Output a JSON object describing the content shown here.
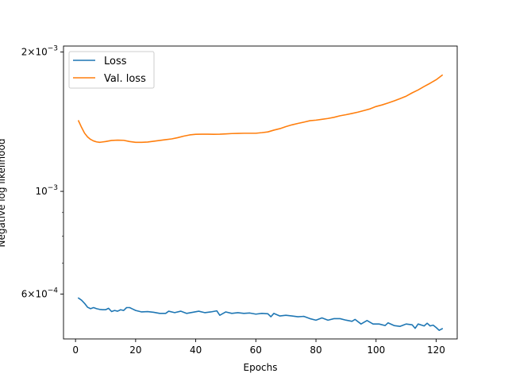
{
  "chart_data": {
    "type": "line",
    "xlabel": "Epochs",
    "ylabel": "Negative log likelihood",
    "xlim": [
      -4,
      127
    ],
    "ylim": [
      0.00048,
      0.00206
    ],
    "yscale": "log",
    "grid": false,
    "legend_position": "top-left",
    "x_ticks": [
      0,
      20,
      40,
      60,
      80,
      100,
      120
    ],
    "x_tick_labels": [
      "0",
      "20",
      "40",
      "60",
      "80",
      "100",
      "120"
    ],
    "y_ticks": [
      {
        "value": 0.002,
        "mantissa": "2",
        "base": "10",
        "exp": "−3"
      },
      {
        "value": 0.001,
        "mantissa": "",
        "base": "10",
        "exp": "−3"
      },
      {
        "value": 0.0006,
        "mantissa": "6",
        "base": "10",
        "exp": "−4"
      }
    ],
    "y_minor_ticks": [
      0.0007,
      0.0008,
      0.0009
    ],
    "series": [
      {
        "name": "Loss",
        "color": "#1f77b4",
        "points": [
          [
            1,
            0.000588
          ],
          [
            2,
            0.000582
          ],
          [
            3,
            0.000573
          ],
          [
            4,
            0.000562
          ],
          [
            5,
            0.000558
          ],
          [
            6,
            0.000561
          ],
          [
            7,
            0.000558
          ],
          [
            8,
            0.000556
          ],
          [
            9,
            0.000555
          ],
          [
            10,
            0.000555
          ],
          [
            11,
            0.000559
          ],
          [
            12,
            0.00055
          ],
          [
            13,
            0.000553
          ],
          [
            14,
            0.000551
          ],
          [
            15,
            0.000555
          ],
          [
            16,
            0.000553
          ],
          [
            17,
            0.000561
          ],
          [
            18,
            0.000561
          ],
          [
            19,
            0.000557
          ],
          [
            20,
            0.000553
          ],
          [
            22,
            0.000549
          ],
          [
            24,
            0.00055
          ],
          [
            26,
            0.000548
          ],
          [
            28,
            0.000545
          ],
          [
            30,
            0.000545
          ],
          [
            31,
            0.000551
          ],
          [
            33,
            0.000547
          ],
          [
            35,
            0.000551
          ],
          [
            37,
            0.000545
          ],
          [
            39,
            0.000548
          ],
          [
            41,
            0.000551
          ],
          [
            43,
            0.000547
          ],
          [
            45,
            0.000549
          ],
          [
            47,
            0.000552
          ],
          [
            48,
            0.00054
          ],
          [
            50,
            0.000549
          ],
          [
            52,
            0.000545
          ],
          [
            54,
            0.000547
          ],
          [
            56,
            0.000545
          ],
          [
            58,
            0.000546
          ],
          [
            60,
            0.000543
          ],
          [
            62,
            0.000545
          ],
          [
            64,
            0.000544
          ],
          [
            65,
            0.000536
          ],
          [
            66,
            0.000545
          ],
          [
            68,
            0.000538
          ],
          [
            70,
            0.00054
          ],
          [
            72,
            0.000538
          ],
          [
            74,
            0.000536
          ],
          [
            76,
            0.000537
          ],
          [
            78,
            0.000531
          ],
          [
            80,
            0.000527
          ],
          [
            82,
            0.000533
          ],
          [
            84,
            0.000527
          ],
          [
            86,
            0.000531
          ],
          [
            88,
            0.000531
          ],
          [
            90,
            0.000527
          ],
          [
            92,
            0.000524
          ],
          [
            93,
            0.000529
          ],
          [
            95,
            0.000517
          ],
          [
            97,
            0.000526
          ],
          [
            99,
            0.000517
          ],
          [
            101,
            0.000517
          ],
          [
            103,
            0.000513
          ],
          [
            104,
            0.00052
          ],
          [
            106,
            0.000513
          ],
          [
            108,
            0.000511
          ],
          [
            110,
            0.000517
          ],
          [
            112,
            0.000515
          ],
          [
            113,
            0.000506
          ],
          [
            114,
            0.000517
          ],
          [
            116,
            0.000512
          ],
          [
            117,
            0.000519
          ],
          [
            118,
            0.000512
          ],
          [
            119,
            0.000514
          ],
          [
            120,
            0.000508
          ],
          [
            121,
            0.000501
          ],
          [
            122,
            0.000505
          ]
        ]
      },
      {
        "name": "Val. loss",
        "color": "#ff7f0e",
        "points": [
          [
            1,
            0.00142
          ],
          [
            2,
            0.001375
          ],
          [
            3,
            0.001336
          ],
          [
            4,
            0.001311
          ],
          [
            5,
            0.001295
          ],
          [
            6,
            0.001285
          ],
          [
            7,
            0.001279
          ],
          [
            8,
            0.001276
          ],
          [
            10,
            0.001281
          ],
          [
            12,
            0.001288
          ],
          [
            14,
            0.00129
          ],
          [
            16,
            0.001289
          ],
          [
            18,
            0.001281
          ],
          [
            20,
            0.001276
          ],
          [
            22,
            0.001276
          ],
          [
            24,
            0.001278
          ],
          [
            26,
            0.001283
          ],
          [
            28,
            0.001288
          ],
          [
            30,
            0.001293
          ],
          [
            32,
            0.001298
          ],
          [
            34,
            0.001306
          ],
          [
            36,
            0.001316
          ],
          [
            38,
            0.001324
          ],
          [
            40,
            0.001328
          ],
          [
            42,
            0.001329
          ],
          [
            44,
            0.001329
          ],
          [
            46,
            0.001328
          ],
          [
            48,
            0.001329
          ],
          [
            50,
            0.001331
          ],
          [
            52,
            0.001333
          ],
          [
            54,
            0.001334
          ],
          [
            56,
            0.001335
          ],
          [
            58,
            0.001335
          ],
          [
            60,
            0.001335
          ],
          [
            62,
            0.001339
          ],
          [
            64,
            0.001344
          ],
          [
            66,
            0.001356
          ],
          [
            68,
            0.001366
          ],
          [
            70,
            0.00138
          ],
          [
            72,
            0.001392
          ],
          [
            74,
            0.001402
          ],
          [
            76,
            0.001411
          ],
          [
            78,
            0.001421
          ],
          [
            80,
            0.001425
          ],
          [
            82,
            0.001431
          ],
          [
            84,
            0.001437
          ],
          [
            86,
            0.001445
          ],
          [
            88,
            0.001456
          ],
          [
            90,
            0.001464
          ],
          [
            92,
            0.001473
          ],
          [
            94,
            0.001483
          ],
          [
            96,
            0.001495
          ],
          [
            98,
            0.001507
          ],
          [
            100,
            0.001525
          ],
          [
            102,
            0.001537
          ],
          [
            104,
            0.001552
          ],
          [
            106,
            0.001568
          ],
          [
            108,
            0.001586
          ],
          [
            110,
            0.001605
          ],
          [
            112,
            0.001632
          ],
          [
            114,
            0.001656
          ],
          [
            116,
            0.001685
          ],
          [
            118,
            0.001712
          ],
          [
            120,
            0.001742
          ],
          [
            122,
            0.001782
          ]
        ]
      }
    ]
  }
}
